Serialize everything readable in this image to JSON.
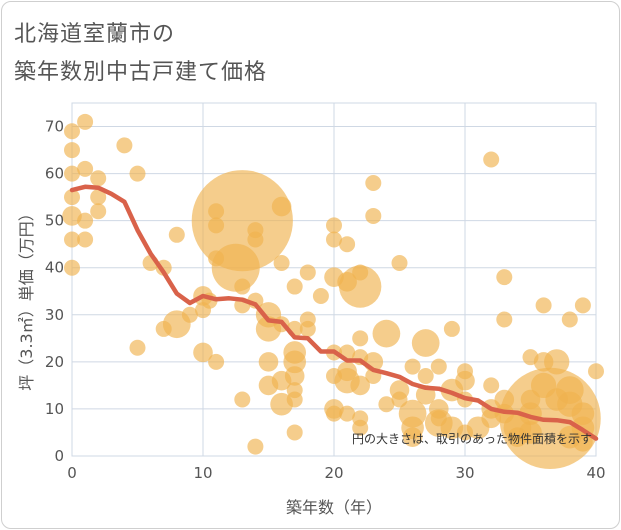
{
  "title_line1": "北海道室蘭市の",
  "title_line2": "築年数別中古戸建て価格",
  "chart_data": {
    "type": "scatter",
    "xlabel": "築年数（年）",
    "ylabel": "坪（3.3㎡）単価（万円）",
    "xlim": [
      0,
      40
    ],
    "ylim": [
      0,
      75
    ],
    "xticks": [
      0,
      10,
      20,
      30,
      40
    ],
    "yticks": [
      0,
      10,
      20,
      30,
      40,
      50,
      60,
      70
    ],
    "grid": true,
    "note": "円の大きさは、取引のあった物件面積を示す",
    "colors": {
      "bubble": "#f0b24f",
      "trend": "#d9624a",
      "grid": "#cfd8e4"
    },
    "bubbles": [
      {
        "x": 0,
        "y": 69,
        "s": 1
      },
      {
        "x": 0,
        "y": 65,
        "s": 1
      },
      {
        "x": 0,
        "y": 60,
        "s": 1
      },
      {
        "x": 0,
        "y": 55,
        "s": 1
      },
      {
        "x": 0,
        "y": 51,
        "s": 1.5
      },
      {
        "x": 0,
        "y": 46,
        "s": 1
      },
      {
        "x": 0,
        "y": 40,
        "s": 1
      },
      {
        "x": 1,
        "y": 71,
        "s": 1
      },
      {
        "x": 1,
        "y": 61,
        "s": 1
      },
      {
        "x": 1,
        "y": 50,
        "s": 1
      },
      {
        "x": 1,
        "y": 46,
        "s": 1
      },
      {
        "x": 2,
        "y": 59,
        "s": 1
      },
      {
        "x": 2,
        "y": 55,
        "s": 1
      },
      {
        "x": 2,
        "y": 52,
        "s": 1
      },
      {
        "x": 4,
        "y": 66,
        "s": 1
      },
      {
        "x": 5,
        "y": 60,
        "s": 1
      },
      {
        "x": 5,
        "y": 23,
        "s": 1
      },
      {
        "x": 6,
        "y": 41,
        "s": 1
      },
      {
        "x": 7,
        "y": 40,
        "s": 1
      },
      {
        "x": 7,
        "y": 27,
        "s": 1
      },
      {
        "x": 8,
        "y": 47,
        "s": 1
      },
      {
        "x": 8,
        "y": 28,
        "s": 3
      },
      {
        "x": 9,
        "y": 30,
        "s": 1
      },
      {
        "x": 10,
        "y": 34,
        "s": 1.5
      },
      {
        "x": 10,
        "y": 31,
        "s": 1
      },
      {
        "x": 10,
        "y": 22,
        "s": 1.5
      },
      {
        "x": 10.5,
        "y": 33,
        "s": 1
      },
      {
        "x": 11,
        "y": 52,
        "s": 1
      },
      {
        "x": 11,
        "y": 49,
        "s": 1
      },
      {
        "x": 11,
        "y": 42,
        "s": 1
      },
      {
        "x": 11,
        "y": 20,
        "s": 1
      },
      {
        "x": 13,
        "y": 50,
        "s": 40
      },
      {
        "x": 12.5,
        "y": 40,
        "s": 9
      },
      {
        "x": 13,
        "y": 36,
        "s": 1
      },
      {
        "x": 13,
        "y": 32,
        "s": 1
      },
      {
        "x": 13,
        "y": 12,
        "s": 1
      },
      {
        "x": 14,
        "y": 48,
        "s": 1
      },
      {
        "x": 14,
        "y": 46,
        "s": 1
      },
      {
        "x": 14,
        "y": 33,
        "s": 1
      },
      {
        "x": 14,
        "y": 2,
        "s": 1
      },
      {
        "x": 15,
        "y": 30,
        "s": 2.5
      },
      {
        "x": 15,
        "y": 27,
        "s": 2.5
      },
      {
        "x": 15,
        "y": 20,
        "s": 1.5
      },
      {
        "x": 15,
        "y": 15,
        "s": 1.5
      },
      {
        "x": 16,
        "y": 53,
        "s": 1.5
      },
      {
        "x": 16,
        "y": 41,
        "s": 1
      },
      {
        "x": 16,
        "y": 28,
        "s": 1
      },
      {
        "x": 16,
        "y": 16,
        "s": 1.5
      },
      {
        "x": 16,
        "y": 11,
        "s": 2
      },
      {
        "x": 17,
        "y": 36,
        "s": 1
      },
      {
        "x": 17,
        "y": 27,
        "s": 1
      },
      {
        "x": 17,
        "y": 22,
        "s": 2
      },
      {
        "x": 17,
        "y": 20,
        "s": 2
      },
      {
        "x": 17,
        "y": 17,
        "s": 1.5
      },
      {
        "x": 17,
        "y": 14,
        "s": 1
      },
      {
        "x": 17,
        "y": 12,
        "s": 1
      },
      {
        "x": 17,
        "y": 5,
        "s": 1
      },
      {
        "x": 18,
        "y": 39,
        "s": 1
      },
      {
        "x": 18,
        "y": 29,
        "s": 1
      },
      {
        "x": 18,
        "y": 27,
        "s": 1
      },
      {
        "x": 19,
        "y": 34,
        "s": 1
      },
      {
        "x": 20,
        "y": 49,
        "s": 1
      },
      {
        "x": 20,
        "y": 46,
        "s": 1
      },
      {
        "x": 20,
        "y": 38,
        "s": 1.5
      },
      {
        "x": 20,
        "y": 22,
        "s": 1
      },
      {
        "x": 20,
        "y": 17,
        "s": 1
      },
      {
        "x": 20,
        "y": 10,
        "s": 1.5
      },
      {
        "x": 20,
        "y": 9,
        "s": 1
      },
      {
        "x": 21,
        "y": 45,
        "s": 1
      },
      {
        "x": 21,
        "y": 37,
        "s": 1.5
      },
      {
        "x": 21,
        "y": 22,
        "s": 1
      },
      {
        "x": 21,
        "y": 18,
        "s": 1.5
      },
      {
        "x": 21,
        "y": 16,
        "s": 2.5
      },
      {
        "x": 21,
        "y": 9,
        "s": 1
      },
      {
        "x": 22,
        "y": 39,
        "s": 1
      },
      {
        "x": 22,
        "y": 36,
        "s": 7
      },
      {
        "x": 22,
        "y": 25,
        "s": 1
      },
      {
        "x": 22,
        "y": 21,
        "s": 1
      },
      {
        "x": 22,
        "y": 15,
        "s": 1.5
      },
      {
        "x": 22,
        "y": 8,
        "s": 1
      },
      {
        "x": 22,
        "y": 6,
        "s": 1
      },
      {
        "x": 23,
        "y": 58,
        "s": 1
      },
      {
        "x": 23,
        "y": 51,
        "s": 1
      },
      {
        "x": 23,
        "y": 20,
        "s": 1.5
      },
      {
        "x": 23,
        "y": 17,
        "s": 1
      },
      {
        "x": 24,
        "y": 26,
        "s": 3
      },
      {
        "x": 24,
        "y": 11,
        "s": 1
      },
      {
        "x": 25,
        "y": 41,
        "s": 1
      },
      {
        "x": 25,
        "y": 14,
        "s": 1.5
      },
      {
        "x": 25,
        "y": 12,
        "s": 1
      },
      {
        "x": 26,
        "y": 19,
        "s": 1
      },
      {
        "x": 26,
        "y": 9,
        "s": 3
      },
      {
        "x": 26,
        "y": 6,
        "s": 2
      },
      {
        "x": 26,
        "y": 4,
        "s": 1.5
      },
      {
        "x": 27,
        "y": 24,
        "s": 3
      },
      {
        "x": 27,
        "y": 17,
        "s": 1
      },
      {
        "x": 27,
        "y": 13,
        "s": 1.5
      },
      {
        "x": 28,
        "y": 19,
        "s": 1
      },
      {
        "x": 28,
        "y": 10,
        "s": 1.5
      },
      {
        "x": 28,
        "y": 8,
        "s": 1
      },
      {
        "x": 28,
        "y": 7,
        "s": 3
      },
      {
        "x": 29,
        "y": 27,
        "s": 1
      },
      {
        "x": 29,
        "y": 14,
        "s": 2
      },
      {
        "x": 29,
        "y": 6,
        "s": 2
      },
      {
        "x": 30,
        "y": 18,
        "s": 1
      },
      {
        "x": 30,
        "y": 16,
        "s": 1.5
      },
      {
        "x": 30,
        "y": 12,
        "s": 1
      },
      {
        "x": 30,
        "y": 5,
        "s": 1
      },
      {
        "x": 31,
        "y": 6,
        "s": 2
      },
      {
        "x": 32,
        "y": 63,
        "s": 1
      },
      {
        "x": 32,
        "y": 15,
        "s": 1
      },
      {
        "x": 32,
        "y": 10,
        "s": 1.5
      },
      {
        "x": 32,
        "y": 8,
        "s": 1.5
      },
      {
        "x": 33,
        "y": 38,
        "s": 1
      },
      {
        "x": 33,
        "y": 29,
        "s": 1
      },
      {
        "x": 33,
        "y": 12,
        "s": 1.5
      },
      {
        "x": 33,
        "y": 9,
        "s": 1.5
      },
      {
        "x": 34,
        "y": 6,
        "s": 3
      },
      {
        "x": 34,
        "y": 4,
        "s": 1.5
      },
      {
        "x": 35,
        "y": 21,
        "s": 1
      },
      {
        "x": 35,
        "y": 12,
        "s": 1.5
      },
      {
        "x": 35,
        "y": 9,
        "s": 2
      },
      {
        "x": 35,
        "y": 5,
        "s": 2
      },
      {
        "x": 36,
        "y": 32,
        "s": 1
      },
      {
        "x": 36,
        "y": 20,
        "s": 1.5
      },
      {
        "x": 36,
        "y": 15,
        "s": 2.5
      },
      {
        "x": 36.5,
        "y": 8,
        "s": 40
      },
      {
        "x": 37,
        "y": 20,
        "s": 2.5
      },
      {
        "x": 37,
        "y": 12,
        "s": 2
      },
      {
        "x": 38,
        "y": 29,
        "s": 1
      },
      {
        "x": 38,
        "y": 14,
        "s": 3
      },
      {
        "x": 38,
        "y": 11,
        "s": 2.5
      },
      {
        "x": 38,
        "y": 4,
        "s": 2
      },
      {
        "x": 39,
        "y": 32,
        "s": 1
      },
      {
        "x": 39,
        "y": 9,
        "s": 2
      },
      {
        "x": 39,
        "y": 6,
        "s": 2
      },
      {
        "x": 39,
        "y": 3,
        "s": 1.5
      },
      {
        "x": 40,
        "y": 18,
        "s": 1
      }
    ],
    "trend": [
      [
        0,
        56.5
      ],
      [
        1,
        57.2
      ],
      [
        2,
        57
      ],
      [
        3,
        55.7
      ],
      [
        4,
        54
      ],
      [
        5,
        48
      ],
      [
        6,
        43
      ],
      [
        7,
        39
      ],
      [
        8,
        34.5
      ],
      [
        9,
        32.5
      ],
      [
        10,
        34
      ],
      [
        11,
        33.3
      ],
      [
        12,
        33.5
      ],
      [
        13,
        33.2
      ],
      [
        14,
        32.2
      ],
      [
        15,
        28.8
      ],
      [
        16,
        28.5
      ],
      [
        17,
        25.2
      ],
      [
        18,
        25
      ],
      [
        19,
        22.2
      ],
      [
        20,
        22.2
      ],
      [
        21,
        20.3
      ],
      [
        22,
        20.3
      ],
      [
        23,
        18.3
      ],
      [
        24,
        17.6
      ],
      [
        25,
        16.8
      ],
      [
        26,
        15.3
      ],
      [
        27,
        14.5
      ],
      [
        28,
        14.3
      ],
      [
        29,
        13.4
      ],
      [
        30,
        12.3
      ],
      [
        31,
        11.8
      ],
      [
        32,
        10
      ],
      [
        33,
        9.4
      ],
      [
        34,
        9.2
      ],
      [
        35,
        8.3
      ],
      [
        36,
        7.7
      ],
      [
        37,
        7.6
      ],
      [
        38,
        7.2
      ],
      [
        39,
        5.5
      ],
      [
        40,
        3.7
      ]
    ]
  }
}
